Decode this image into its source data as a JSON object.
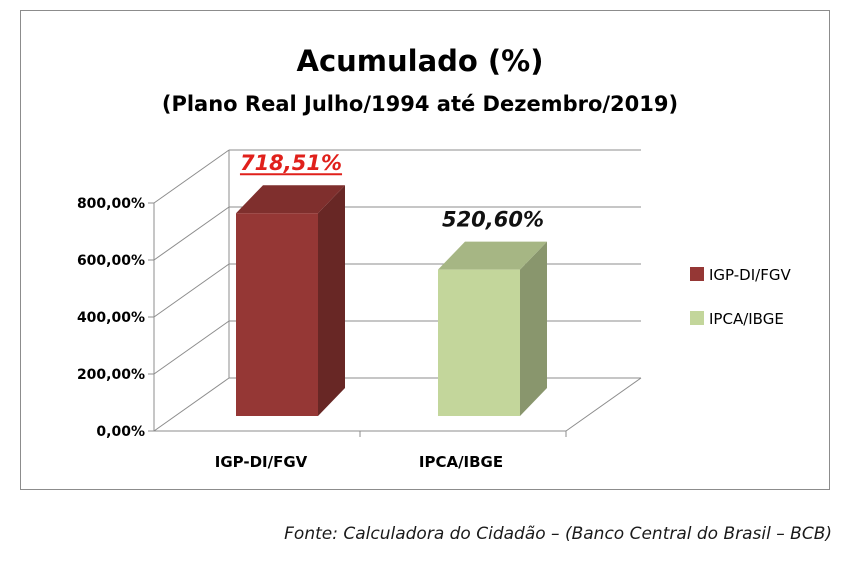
{
  "chart_data": {
    "type": "bar",
    "title": "Acumulado (%)",
    "subtitle": "(Plano Real Julho/1994 até Dezembro/2019)",
    "categories": [
      "IGP-DI/FGV",
      "IPCA/IBGE"
    ],
    "series": [
      {
        "name": "IGP-DI/FGV",
        "values": [
          718.51,
          null
        ],
        "color": "#953735",
        "label": "718,51%",
        "label_style": "red-underlined-italic"
      },
      {
        "name": "IPCA/IBGE",
        "values": [
          null,
          520.6
        ],
        "color": "#c3d69b",
        "label": "520,60%",
        "label_style": "black-italic"
      }
    ],
    "y_ticks": [
      "0,00%",
      "200,00%",
      "400,00%",
      "600,00%",
      "800,00%"
    ],
    "ylim": [
      0,
      800
    ],
    "grid": true,
    "legend_position": "right",
    "style": "3d-bar"
  },
  "source": "Fonte: Calculadora do Cidadão – (Banco Central do Brasil – BCB)"
}
